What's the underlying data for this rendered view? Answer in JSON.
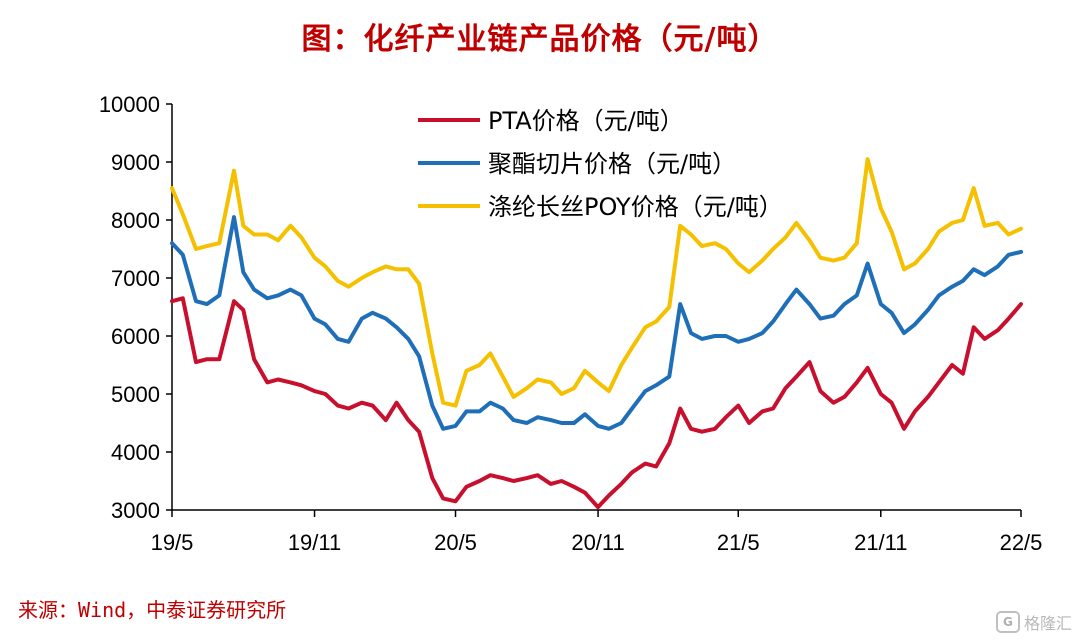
{
  "title": "图：化纤产业链产品价格（元/吨）",
  "source": "来源：Wind，中泰证券研究所",
  "watermark": "格隆汇",
  "chart_data": {
    "type": "line",
    "title": "图：化纤产业链产品价格（元/吨）",
    "xlabel": "",
    "ylabel": "",
    "ylim": [
      3000,
      10000
    ],
    "yticks": [
      3000,
      4000,
      5000,
      6000,
      7000,
      8000,
      9000,
      10000
    ],
    "xlim": [
      "2019-05",
      "2022-05"
    ],
    "xticks": [
      {
        "x": "2019-05",
        "label": "19/5"
      },
      {
        "x": "2019-11",
        "label": "19/11"
      },
      {
        "x": "2020-05",
        "label": "20/5"
      },
      {
        "x": "2020-11",
        "label": "20/11"
      },
      {
        "x": "2021-05",
        "label": "21/5"
      },
      {
        "x": "2021-11",
        "label": "21/11"
      },
      {
        "x": "2022-05",
        "label": "22/5"
      }
    ],
    "grid": false,
    "legend": "top-center",
    "series": [
      {
        "name": "PTA价格（元/吨）",
        "color": "#c8102e",
        "points": [
          [
            "2019-05",
            6600
          ],
          [
            "2019-05-15",
            6650
          ],
          [
            "2019-06",
            5550
          ],
          [
            "2019-06-15",
            5600
          ],
          [
            "2019-07",
            5600
          ],
          [
            "2019-07-20",
            6600
          ],
          [
            "2019-08",
            6450
          ],
          [
            "2019-08-15",
            5600
          ],
          [
            "2019-09",
            5200
          ],
          [
            "2019-09-15",
            5250
          ],
          [
            "2019-10",
            5200
          ],
          [
            "2019-10-15",
            5150
          ],
          [
            "2019-11",
            5050
          ],
          [
            "2019-11-15",
            5000
          ],
          [
            "2019-12",
            4800
          ],
          [
            "2019-12-15",
            4750
          ],
          [
            "2020-01",
            4850
          ],
          [
            "2020-01-15",
            4800
          ],
          [
            "2020-02",
            4550
          ],
          [
            "2020-02-15",
            4850
          ],
          [
            "2020-03",
            4550
          ],
          [
            "2020-03-15",
            4350
          ],
          [
            "2020-04",
            3550
          ],
          [
            "2020-04-15",
            3200
          ],
          [
            "2020-05",
            3150
          ],
          [
            "2020-05-15",
            3400
          ],
          [
            "2020-06",
            3500
          ],
          [
            "2020-06-15",
            3600
          ],
          [
            "2020-07",
            3550
          ],
          [
            "2020-07-15",
            3500
          ],
          [
            "2020-08",
            3550
          ],
          [
            "2020-08-15",
            3600
          ],
          [
            "2020-09",
            3450
          ],
          [
            "2020-09-15",
            3500
          ],
          [
            "2020-10",
            3400
          ],
          [
            "2020-10-15",
            3300
          ],
          [
            "2020-11",
            3050
          ],
          [
            "2020-11-15",
            3250
          ],
          [
            "2020-12",
            3450
          ],
          [
            "2020-12-15",
            3650
          ],
          [
            "2021-01",
            3800
          ],
          [
            "2021-01-15",
            3750
          ],
          [
            "2021-02",
            4150
          ],
          [
            "2021-02-15",
            4750
          ],
          [
            "2021-03",
            4400
          ],
          [
            "2021-03-15",
            4350
          ],
          [
            "2021-04",
            4400
          ],
          [
            "2021-04-15",
            4600
          ],
          [
            "2021-05",
            4800
          ],
          [
            "2021-05-15",
            4500
          ],
          [
            "2021-06",
            4700
          ],
          [
            "2021-06-15",
            4750
          ],
          [
            "2021-07",
            5100
          ],
          [
            "2021-07-15",
            5300
          ],
          [
            "2021-08",
            5550
          ],
          [
            "2021-08-15",
            5050
          ],
          [
            "2021-09",
            4850
          ],
          [
            "2021-09-15",
            4950
          ],
          [
            "2021-10",
            5200
          ],
          [
            "2021-10-15",
            5450
          ],
          [
            "2021-11",
            5000
          ],
          [
            "2021-11-15",
            4850
          ],
          [
            "2021-12",
            4400
          ],
          [
            "2021-12-15",
            4700
          ],
          [
            "2022-01",
            4950
          ],
          [
            "2022-01-15",
            5200
          ],
          [
            "2022-02",
            5500
          ],
          [
            "2022-02-15",
            5350
          ],
          [
            "2022-03",
            6150
          ],
          [
            "2022-03-15",
            5950
          ],
          [
            "2022-04",
            6100
          ],
          [
            "2022-04-15",
            6300
          ],
          [
            "2022-05",
            6550
          ]
        ]
      },
      {
        "name": "聚酯切片价格（元/吨）",
        "color": "#1f6fb8",
        "points": [
          [
            "2019-05",
            7600
          ],
          [
            "2019-05-15",
            7400
          ],
          [
            "2019-06",
            6600
          ],
          [
            "2019-06-15",
            6550
          ],
          [
            "2019-07",
            6700
          ],
          [
            "2019-07-20",
            8050
          ],
          [
            "2019-08",
            7100
          ],
          [
            "2019-08-15",
            6800
          ],
          [
            "2019-09",
            6650
          ],
          [
            "2019-09-15",
            6700
          ],
          [
            "2019-10",
            6800
          ],
          [
            "2019-10-15",
            6700
          ],
          [
            "2019-11",
            6300
          ],
          [
            "2019-11-15",
            6200
          ],
          [
            "2019-12",
            5950
          ],
          [
            "2019-12-15",
            5900
          ],
          [
            "2020-01",
            6300
          ],
          [
            "2020-01-15",
            6400
          ],
          [
            "2020-02",
            6300
          ],
          [
            "2020-02-15",
            6150
          ],
          [
            "2020-03",
            5950
          ],
          [
            "2020-03-15",
            5650
          ],
          [
            "2020-04",
            4800
          ],
          [
            "2020-04-15",
            4400
          ],
          [
            "2020-05",
            4450
          ],
          [
            "2020-05-15",
            4700
          ],
          [
            "2020-06",
            4700
          ],
          [
            "2020-06-15",
            4850
          ],
          [
            "2020-07",
            4750
          ],
          [
            "2020-07-15",
            4550
          ],
          [
            "2020-08",
            4500
          ],
          [
            "2020-08-15",
            4600
          ],
          [
            "2020-09",
            4550
          ],
          [
            "2020-09-15",
            4500
          ],
          [
            "2020-10",
            4500
          ],
          [
            "2020-10-15",
            4650
          ],
          [
            "2020-11",
            4450
          ],
          [
            "2020-11-15",
            4400
          ],
          [
            "2020-12",
            4500
          ],
          [
            "2020-12-15",
            4750
          ],
          [
            "2021-01",
            5050
          ],
          [
            "2021-01-15",
            5150
          ],
          [
            "2021-02",
            5300
          ],
          [
            "2021-02-15",
            6550
          ],
          [
            "2021-03",
            6050
          ],
          [
            "2021-03-15",
            5950
          ],
          [
            "2021-04",
            6000
          ],
          [
            "2021-04-15",
            6000
          ],
          [
            "2021-05",
            5900
          ],
          [
            "2021-05-15",
            5950
          ],
          [
            "2021-06",
            6050
          ],
          [
            "2021-06-15",
            6250
          ],
          [
            "2021-07",
            6550
          ],
          [
            "2021-07-15",
            6800
          ],
          [
            "2021-08",
            6550
          ],
          [
            "2021-08-15",
            6300
          ],
          [
            "2021-09",
            6350
          ],
          [
            "2021-09-15",
            6550
          ],
          [
            "2021-10",
            6700
          ],
          [
            "2021-10-15",
            7250
          ],
          [
            "2021-11",
            6550
          ],
          [
            "2021-11-15",
            6400
          ],
          [
            "2021-12",
            6050
          ],
          [
            "2021-12-15",
            6200
          ],
          [
            "2022-01",
            6450
          ],
          [
            "2022-01-15",
            6700
          ],
          [
            "2022-02",
            6850
          ],
          [
            "2022-02-15",
            6950
          ],
          [
            "2022-03",
            7150
          ],
          [
            "2022-03-15",
            7050
          ],
          [
            "2022-04",
            7200
          ],
          [
            "2022-04-15",
            7400
          ],
          [
            "2022-05",
            7450
          ]
        ]
      },
      {
        "name": "涤纶长丝POY价格（元/吨）",
        "color": "#f5c000",
        "points": [
          [
            "2019-05",
            8550
          ],
          [
            "2019-05-15",
            8100
          ],
          [
            "2019-06",
            7500
          ],
          [
            "2019-06-15",
            7550
          ],
          [
            "2019-07",
            7600
          ],
          [
            "2019-07-20",
            8850
          ],
          [
            "2019-08",
            7900
          ],
          [
            "2019-08-15",
            7750
          ],
          [
            "2019-09",
            7750
          ],
          [
            "2019-09-15",
            7650
          ],
          [
            "2019-10",
            7900
          ],
          [
            "2019-10-15",
            7700
          ],
          [
            "2019-11",
            7350
          ],
          [
            "2019-11-15",
            7200
          ],
          [
            "2019-12",
            6950
          ],
          [
            "2019-12-15",
            6850
          ],
          [
            "2020-01",
            7000
          ],
          [
            "2020-01-15",
            7100
          ],
          [
            "2020-02",
            7200
          ],
          [
            "2020-02-15",
            7150
          ],
          [
            "2020-03",
            7150
          ],
          [
            "2020-03-15",
            6900
          ],
          [
            "2020-04",
            5700
          ],
          [
            "2020-04-15",
            4850
          ],
          [
            "2020-05",
            4800
          ],
          [
            "2020-05-15",
            5400
          ],
          [
            "2020-06",
            5500
          ],
          [
            "2020-06-15",
            5700
          ],
          [
            "2020-07",
            5300
          ],
          [
            "2020-07-15",
            4950
          ],
          [
            "2020-08",
            5100
          ],
          [
            "2020-08-15",
            5250
          ],
          [
            "2020-09",
            5200
          ],
          [
            "2020-09-15",
            5000
          ],
          [
            "2020-10",
            5100
          ],
          [
            "2020-10-15",
            5400
          ],
          [
            "2020-11",
            5200
          ],
          [
            "2020-11-15",
            5050
          ],
          [
            "2020-12",
            5500
          ],
          [
            "2020-12-15",
            5800
          ],
          [
            "2021-01",
            6150
          ],
          [
            "2021-01-15",
            6250
          ],
          [
            "2021-02",
            6500
          ],
          [
            "2021-02-15",
            7900
          ],
          [
            "2021-03",
            7750
          ],
          [
            "2021-03-15",
            7550
          ],
          [
            "2021-04",
            7600
          ],
          [
            "2021-04-15",
            7500
          ],
          [
            "2021-05",
            7250
          ],
          [
            "2021-05-15",
            7100
          ],
          [
            "2021-06",
            7300
          ],
          [
            "2021-06-15",
            7500
          ],
          [
            "2021-07",
            7700
          ],
          [
            "2021-07-15",
            7950
          ],
          [
            "2021-08",
            7650
          ],
          [
            "2021-08-15",
            7350
          ],
          [
            "2021-09",
            7300
          ],
          [
            "2021-09-15",
            7350
          ],
          [
            "2021-10",
            7600
          ],
          [
            "2021-10-15",
            9050
          ],
          [
            "2021-11",
            8200
          ],
          [
            "2021-11-15",
            7800
          ],
          [
            "2021-12",
            7150
          ],
          [
            "2021-12-15",
            7250
          ],
          [
            "2022-01",
            7500
          ],
          [
            "2022-01-15",
            7800
          ],
          [
            "2022-02",
            7950
          ],
          [
            "2022-02-15",
            8000
          ],
          [
            "2022-03",
            8550
          ],
          [
            "2022-03-15",
            7900
          ],
          [
            "2022-04",
            7950
          ],
          [
            "2022-04-15",
            7750
          ],
          [
            "2022-05",
            7850
          ]
        ]
      }
    ]
  }
}
